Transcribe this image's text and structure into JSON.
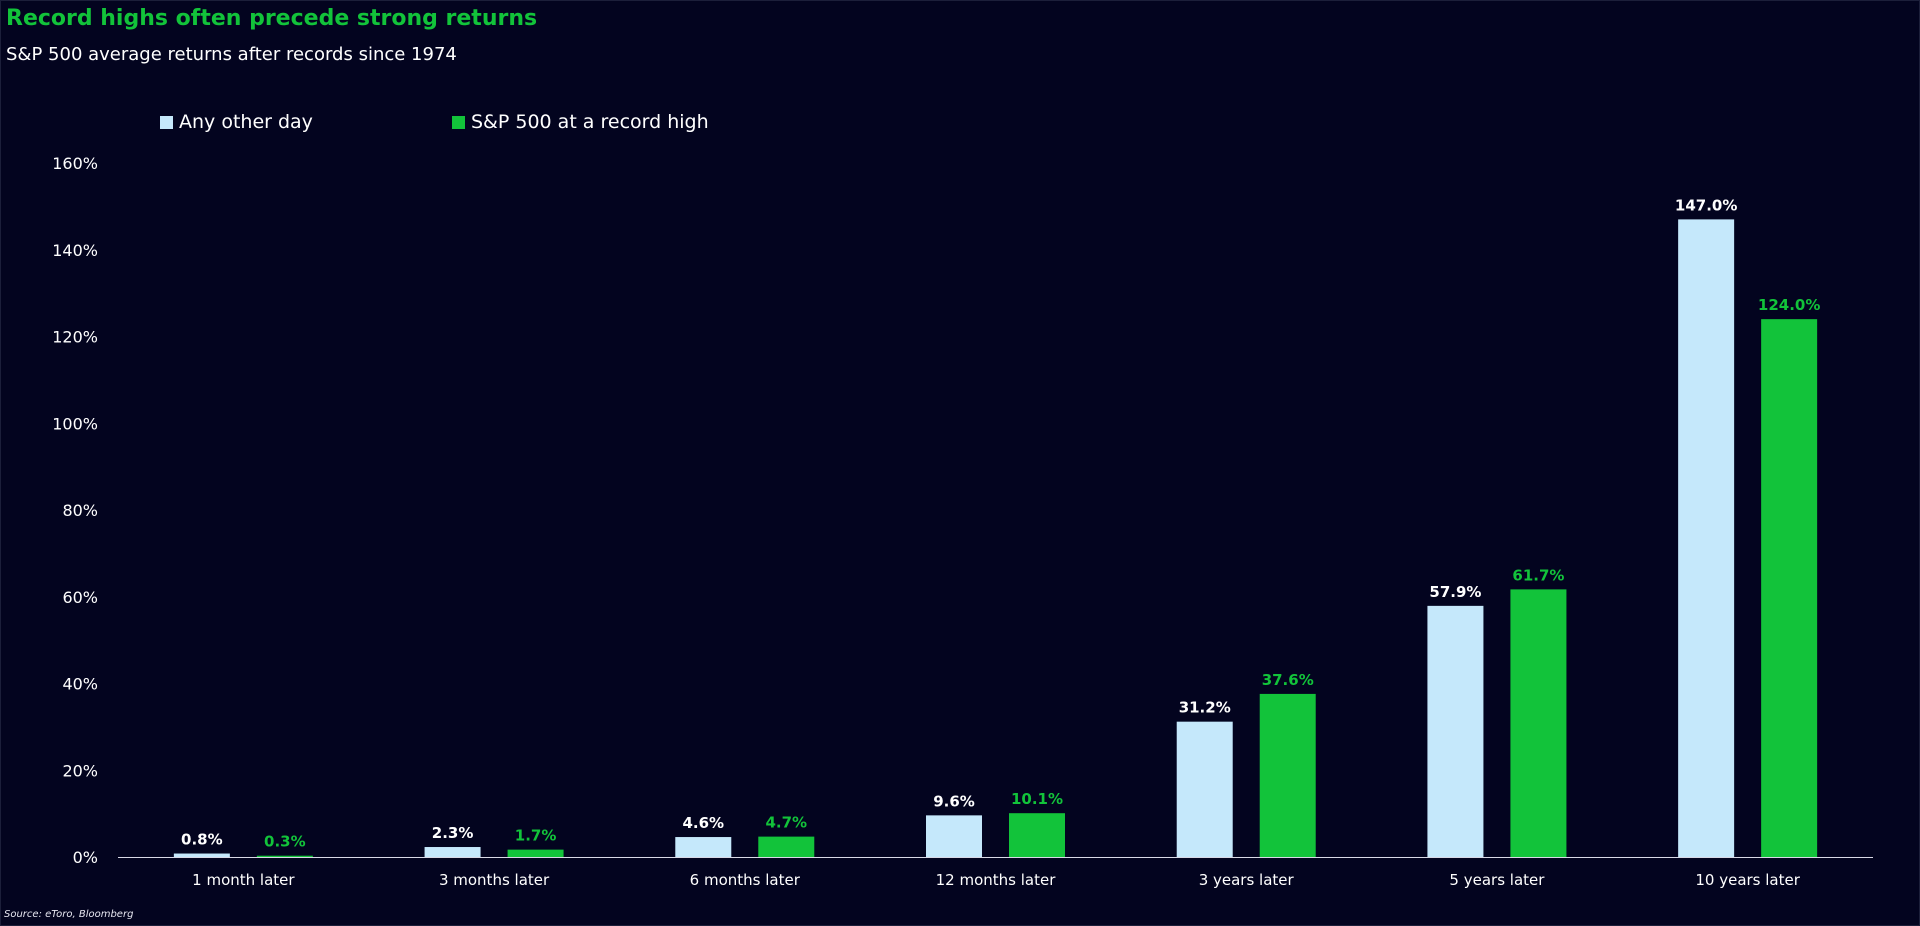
{
  "title": "Record highs often precede strong returns",
  "subtitle": "S&P 500 average returns after records since 1974",
  "source": "Source: eToro, Bloomberg",
  "colors": {
    "background": "#03041f",
    "title": "#12c33a",
    "any_other_day": "#c5e8fb",
    "record_high": "#12c33a",
    "axis_text": "#ffffff"
  },
  "chart_data": {
    "type": "bar",
    "title": "Record highs often precede strong returns",
    "subtitle": "S&P 500 average returns after records since 1974",
    "categories": [
      "1 month later",
      "3 months later",
      "6 months later",
      "12 months later",
      "3 years later",
      "5 years later",
      "10 years later"
    ],
    "series": [
      {
        "name": "Any other day",
        "values": [
          0.8,
          2.3,
          4.6,
          9.6,
          31.2,
          57.9,
          147.0
        ],
        "labels": [
          "0.8%",
          "2.3%",
          "4.6%",
          "9.6%",
          "31.2%",
          "57.9%",
          "147.0%"
        ],
        "color": "#c5e8fb"
      },
      {
        "name": "S&P 500 at a record high",
        "values": [
          0.3,
          1.7,
          4.7,
          10.1,
          37.6,
          61.7,
          124.0
        ],
        "labels": [
          "0.3%",
          "1.7%",
          "4.7%",
          "10.1%",
          "37.6%",
          "61.7%",
          "124.0%"
        ],
        "color": "#12c33a"
      }
    ],
    "y_ticks": [
      0,
      20,
      40,
      60,
      80,
      100,
      120,
      140,
      160
    ],
    "y_tick_labels": [
      "0%",
      "20%",
      "40%",
      "60%",
      "80%",
      "100%",
      "120%",
      "140%",
      "160%"
    ],
    "ylim": [
      0,
      160
    ],
    "xlabel": "",
    "ylabel": "",
    "grid": false,
    "legend_position": "top-left"
  }
}
